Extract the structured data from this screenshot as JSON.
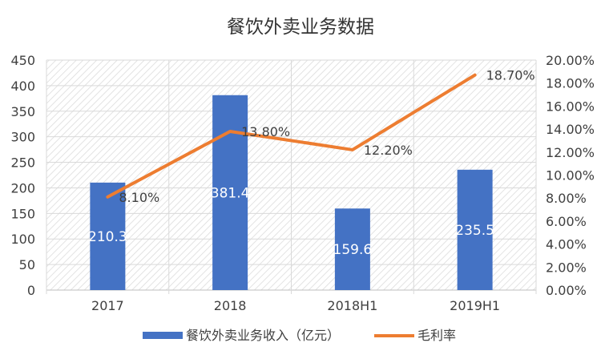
{
  "chart_data": {
    "type": "bar+line",
    "title": "餐饮外卖业务数据",
    "categories": [
      "2017",
      "2018",
      "2018H1",
      "2019H1"
    ],
    "series": [
      {
        "name": "餐饮外卖业务收入（亿元）",
        "type": "bar",
        "axis": "left",
        "values": [
          210.3,
          381.4,
          159.6,
          235.5
        ],
        "data_labels": [
          "210.3",
          "381.4",
          "159.6",
          "235.5"
        ],
        "color": "#4472C4"
      },
      {
        "name": "毛利率",
        "type": "line",
        "axis": "right",
        "values": [
          8.1,
          13.8,
          12.2,
          18.7
        ],
        "data_labels": [
          "8.10%",
          "13.80%",
          "12.20%",
          "18.70%"
        ],
        "color": "#ED7D31"
      }
    ],
    "y_left": {
      "lim": [
        0,
        450
      ],
      "ticks": [
        "0",
        "50",
        "100",
        "150",
        "200",
        "250",
        "300",
        "350",
        "400",
        "450"
      ]
    },
    "y_right": {
      "lim": [
        0,
        20
      ],
      "ticks": [
        "0.00%",
        "2.00%",
        "4.00%",
        "6.00%",
        "8.00%",
        "10.00%",
        "12.00%",
        "14.00%",
        "16.00%",
        "18.00%",
        "20.00%"
      ]
    },
    "grid": "on",
    "plot_background": "diagonal-hatch",
    "legend_position": "bottom"
  }
}
